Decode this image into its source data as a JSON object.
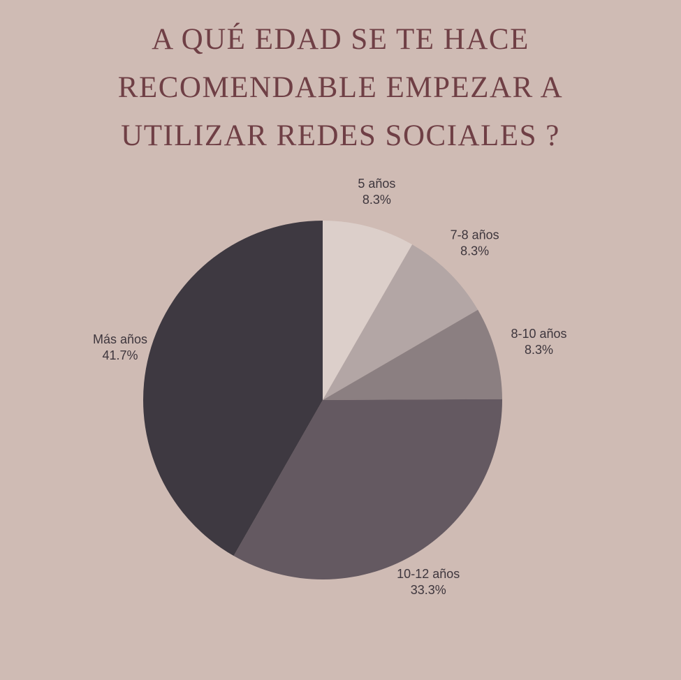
{
  "title_lines": [
    "A QUÉ EDAD SE TE HACE",
    "RECOMENDABLE EMPEZAR A",
    "UTILIZAR REDES SOCIALES ?"
  ],
  "chart_data": {
    "type": "pie",
    "title": "A QUÉ EDAD SE TE HACE RECOMENDABLE EMPEZAR A UTILIZAR REDES SOCIALES ?",
    "slices": [
      {
        "label": "5 años",
        "percent_label": "8.3%",
        "value": 8.3,
        "color": "#dccfca"
      },
      {
        "label": "7-8 años",
        "percent_label": "8.3%",
        "value": 8.3,
        "color": "#b3a6a5"
      },
      {
        "label": "8-10 años",
        "percent_label": "8.3%",
        "value": 8.3,
        "color": "#8b7f81"
      },
      {
        "label": "10-12 años",
        "percent_label": "33.3%",
        "value": 33.3,
        "color": "#645961"
      },
      {
        "label": "Más años",
        "percent_label": "41.7%",
        "value": 41.7,
        "color": "#3e3941"
      }
    ],
    "start_angle": "12 o'clock",
    "direction": "clockwise",
    "legend": "none"
  }
}
